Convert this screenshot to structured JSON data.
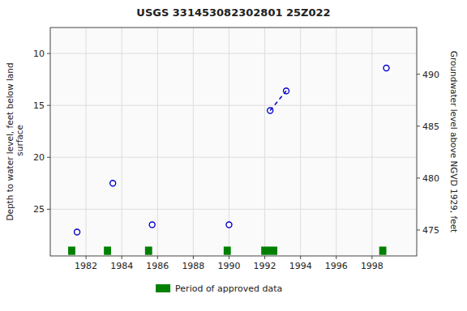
{
  "chart_data": {
    "type": "scatter",
    "title": "USGS 331453082302801 25Z022",
    "ylabel": "Depth to water level, feet below land\n surface",
    "y2label": "Groundwater level above NGVD 1929, feet",
    "x": [
      1981.5,
      1983.5,
      1985.7,
      1990.0,
      1992.3,
      1993.2,
      1998.8
    ],
    "series": [
      {
        "type": "scatter",
        "marker": "circle",
        "color": "#0000cc",
        "values": [
          27.2,
          22.5,
          26.5,
          26.5,
          15.5,
          13.6,
          11.4
        ]
      },
      {
        "type": "line",
        "line_style": "dashed",
        "color": "#0000cc",
        "values": [
          null,
          null,
          null,
          null,
          15.5,
          13.6,
          null
        ]
      },
      {
        "type": "span",
        "name": "Period of approved data",
        "color": "#008000",
        "x": [
          1981.0,
          1983.0,
          1985.3,
          1989.7,
          1991.8,
          1998.4
        ],
        "widths": [
          0.4,
          0.4,
          0.4,
          0.4,
          0.9,
          0.4
        ],
        "values": [
          29.0,
          29.0,
          29.0,
          29.0,
          29.0,
          29.0
        ],
        "height": 0.8
      }
    ],
    "xlim": [
      1980.0,
      2000.5
    ],
    "xticks": [
      1982,
      1984,
      1986,
      1988,
      1990,
      1992,
      1994,
      1996,
      1998
    ],
    "ylim": [
      29.5,
      7.5
    ],
    "yticks": [
      10,
      15,
      20,
      25
    ],
    "y2lim": [
      472.5,
      494.5
    ],
    "y2ticks": [
      475,
      480,
      485,
      490
    ],
    "grid": true,
    "legend": "bottom"
  }
}
